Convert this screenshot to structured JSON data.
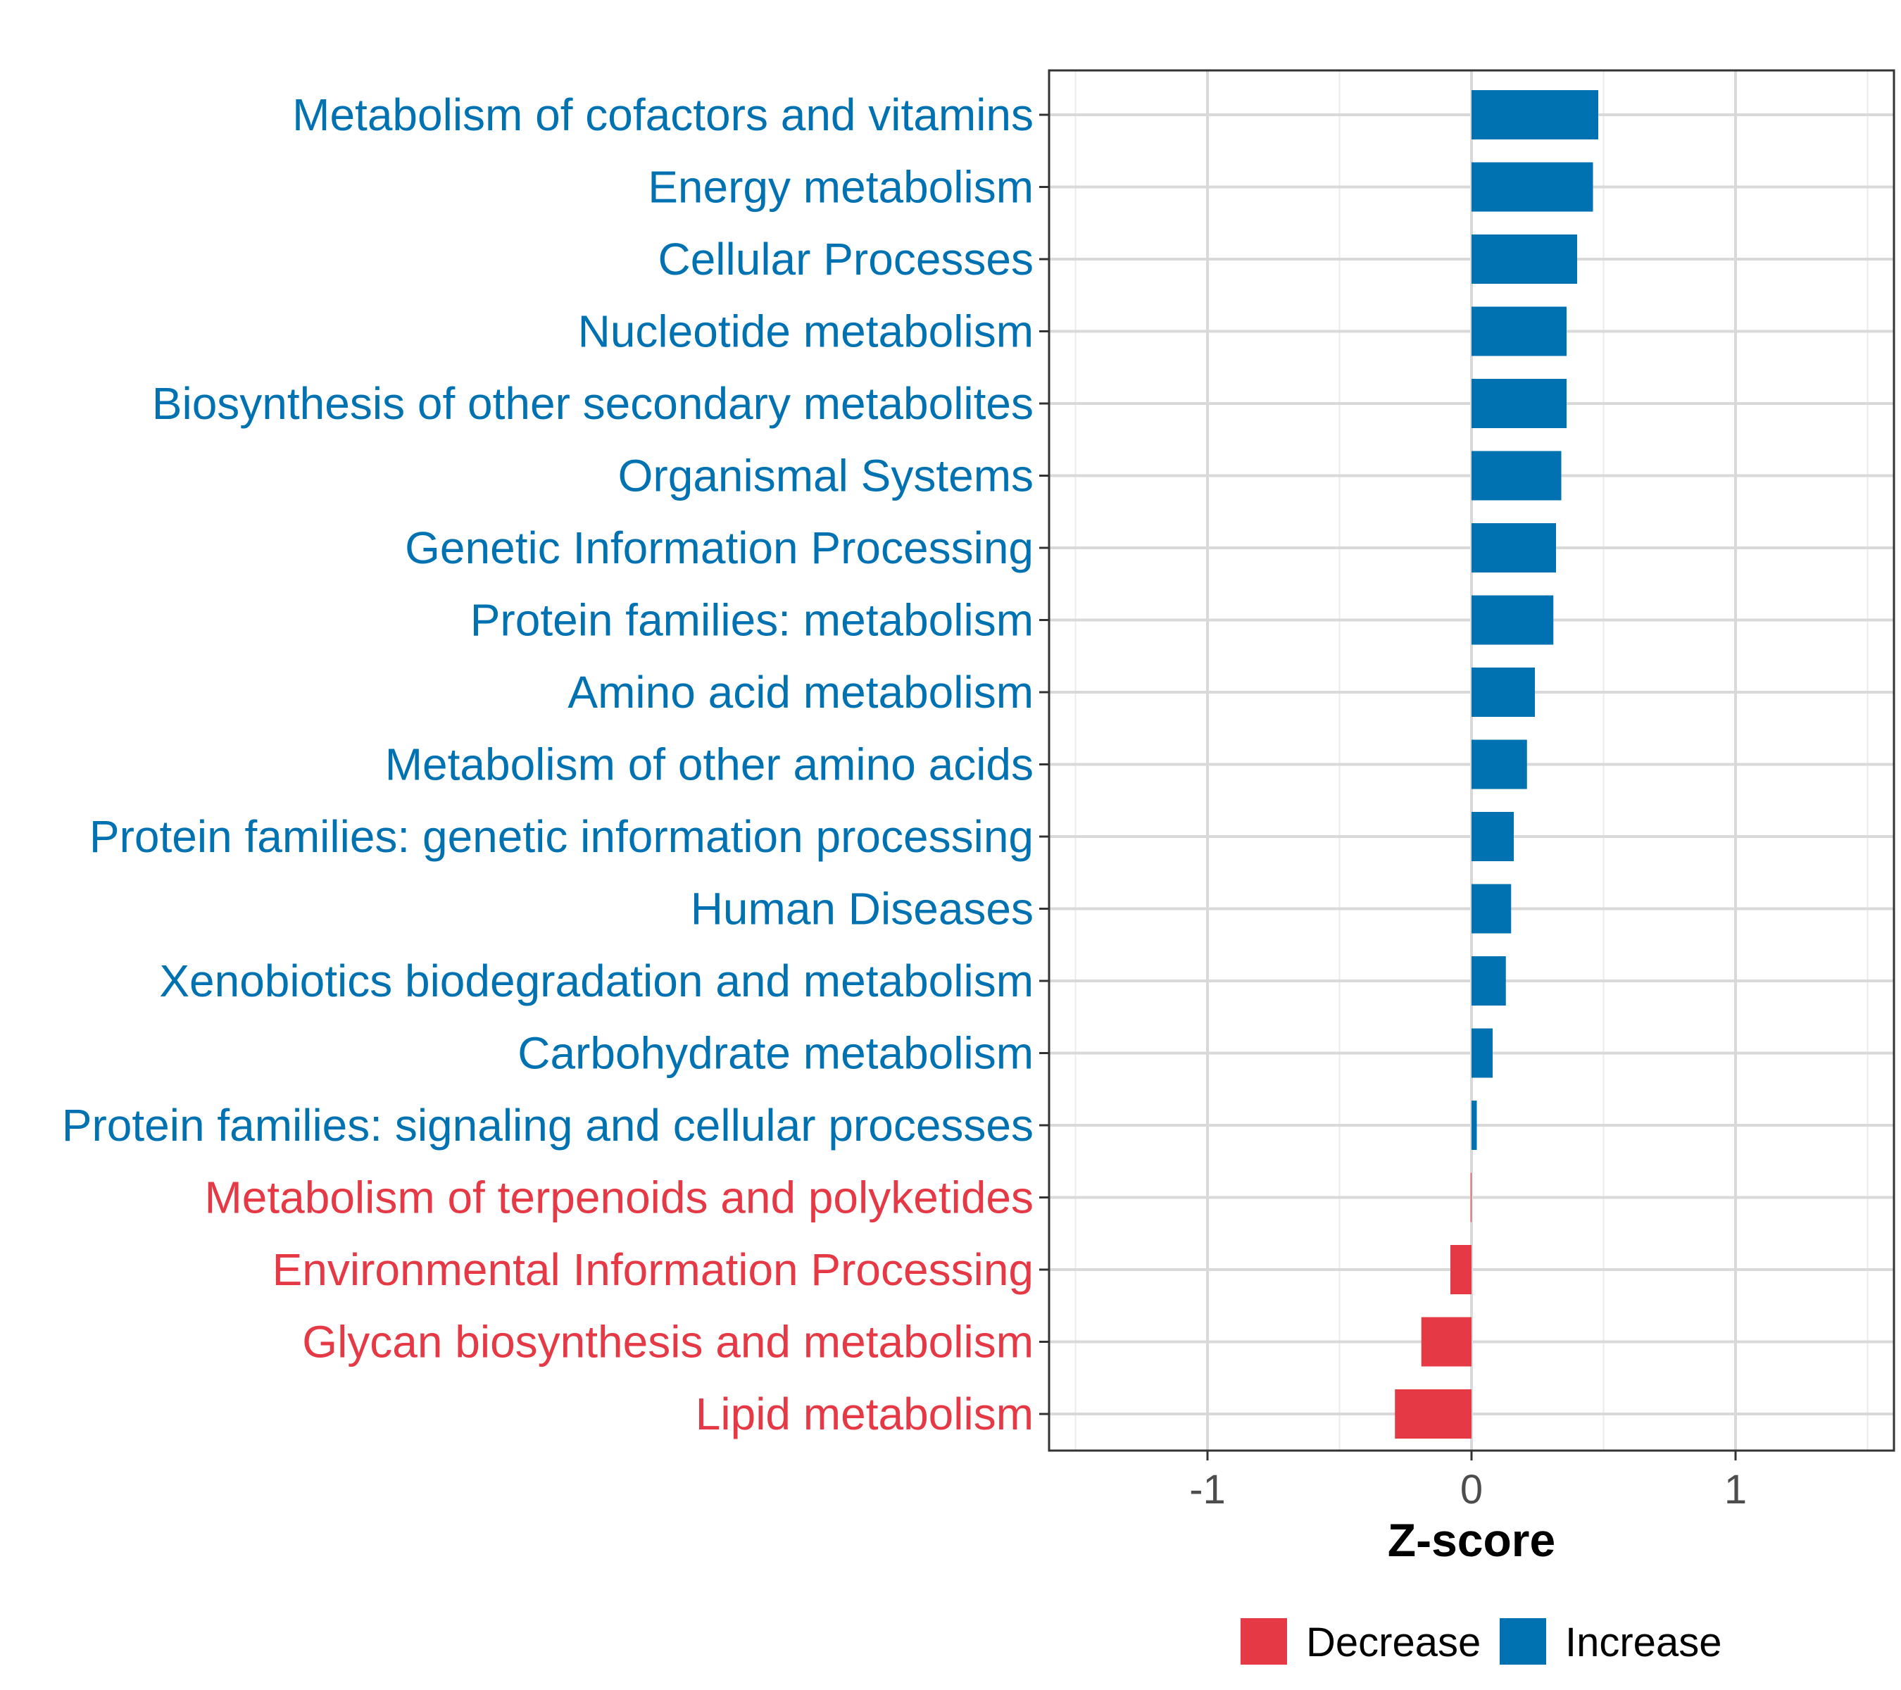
{
  "chart_data": {
    "type": "bar",
    "orientation": "horizontal",
    "xlabel": "Z-score",
    "ylabel": "",
    "xlim": [
      -1.6,
      1.6
    ],
    "xticks": [
      -1,
      0,
      1
    ],
    "xtick_labels": [
      "-1",
      "0",
      "1"
    ],
    "grid": true,
    "legend_position": "bottom",
    "legend": [
      {
        "name": "Decrease",
        "color": "#e63946"
      },
      {
        "name": "Increase",
        "color": "#0072b2"
      }
    ],
    "categories": [
      "Metabolism of cofactors and vitamins",
      "Energy metabolism",
      "Cellular Processes",
      "Nucleotide metabolism",
      "Biosynthesis of other secondary metabolites",
      "Organismal Systems",
      "Genetic Information Processing",
      "Protein families: metabolism",
      "Amino acid metabolism",
      "Metabolism of other amino acids",
      "Protein families: genetic information processing",
      "Human Diseases",
      "Xenobiotics biodegradation and metabolism",
      "Carbohydrate metabolism",
      "Protein families: signaling and cellular processes",
      "Metabolism of terpenoids and polyketides",
      "Environmental Information Processing",
      "Glycan biosynthesis and metabolism",
      "Lipid metabolism"
    ],
    "values": [
      0.48,
      0.46,
      0.4,
      0.36,
      0.36,
      0.34,
      0.32,
      0.31,
      0.24,
      0.21,
      0.16,
      0.15,
      0.13,
      0.08,
      0.02,
      -0.003,
      -0.08,
      -0.19,
      -0.29
    ],
    "groups": [
      "Increase",
      "Increase",
      "Increase",
      "Increase",
      "Increase",
      "Increase",
      "Increase",
      "Increase",
      "Increase",
      "Increase",
      "Increase",
      "Increase",
      "Increase",
      "Increase",
      "Increase",
      "Decrease",
      "Decrease",
      "Decrease",
      "Decrease"
    ]
  }
}
